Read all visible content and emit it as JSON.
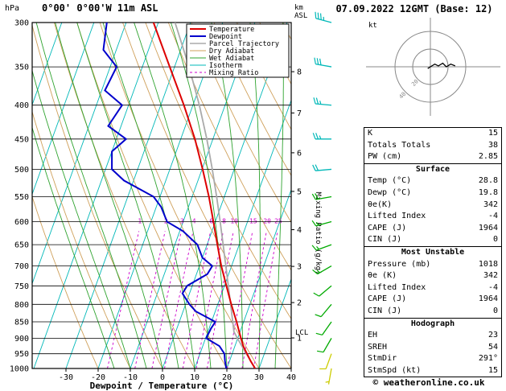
{
  "meta": {
    "date_title": "07.09.2022 12GMT (Base: 12)",
    "copyright": "© weatheronline.co.uk"
  },
  "colors": {
    "temperature": "#dd0000",
    "dewpoint": "#0000cc",
    "parcel": "#aaaaaa",
    "dry_adiabat": "#cfa05a",
    "wet_adiabat": "#2fa32f",
    "isotherm": "#00b8b8",
    "mixing_ratio": "#cc00cc",
    "grid": "#000000",
    "hodograph_grid": "#888888"
  },
  "chart_data": [
    {
      "type": "skewt-log-p",
      "title": "0°00' 0°00'W 11m ASL",
      "pressure_unit": "hPa",
      "xlabel": "Dewpoint / Temperature (°C)",
      "right_label": "Mixing Ratio (g/kg)",
      "km_axis_label": [
        "km",
        "ASL"
      ],
      "pressure_range_hpa": [
        300,
        1000
      ],
      "temp_range_c": [
        -40.5,
        40
      ],
      "pressure_ticks": [
        300,
        350,
        400,
        450,
        500,
        550,
        600,
        650,
        700,
        750,
        800,
        850,
        900,
        950,
        1000
      ],
      "temp_ticks": [
        -30,
        -20,
        -10,
        0,
        10,
        20,
        30,
        40
      ],
      "km_ticks": [
        {
          "label": "8",
          "p": 356
        },
        {
          "label": "7",
          "p": 411
        },
        {
          "label": "6",
          "p": 472
        },
        {
          "label": "5",
          "p": 540
        },
        {
          "label": "4",
          "p": 617
        },
        {
          "label": "3",
          "p": 701
        },
        {
          "label": "2",
          "p": 795
        },
        {
          "label": "1",
          "p": 899
        }
      ],
      "lcl": {
        "label": "LCL",
        "p": 880
      },
      "mixing_ratio_values": [
        1,
        2,
        3,
        4,
        6,
        8,
        10,
        15,
        20,
        25
      ],
      "isotherms_c": [
        -120,
        -110,
        -100,
        -90,
        -80,
        -70,
        -60,
        -50,
        -40,
        -30,
        -20,
        -10,
        0,
        10,
        20,
        30,
        40
      ],
      "dry_adiabats_c": [
        -20,
        -10,
        0,
        10,
        20,
        30,
        40,
        50,
        60,
        70,
        80,
        90,
        100,
        110,
        120,
        130,
        140,
        150
      ],
      "wet_adiabats_c": [
        -15,
        -10,
        -5,
        0,
        5,
        10,
        15,
        20,
        25,
        30,
        35
      ],
      "legend": [
        {
          "label": "Temperature",
          "color": "#dd0000",
          "width": 2
        },
        {
          "label": "Dewpoint",
          "color": "#0000cc",
          "width": 2
        },
        {
          "label": "Parcel Trajectory",
          "color": "#aaaaaa",
          "width": 1.6
        },
        {
          "label": "Dry Adiabat",
          "color": "#cfa05a",
          "width": 1
        },
        {
          "label": "Wet Adiabat",
          "color": "#2fa32f",
          "width": 1
        },
        {
          "label": "Isotherm",
          "color": "#00b8b8",
          "width": 1
        },
        {
          "label": "Mixing Ratio",
          "color": "#cc00cc",
          "width": 1,
          "dash": "3,3"
        }
      ],
      "temperature_profile": [
        [
          1000,
          28.8
        ],
        [
          975,
          26.6
        ],
        [
          950,
          24.6
        ],
        [
          925,
          22.6
        ],
        [
          900,
          21.0
        ],
        [
          850,
          17.8
        ],
        [
          800,
          14.2
        ],
        [
          750,
          10.6
        ],
        [
          700,
          6.8
        ],
        [
          650,
          3.2
        ],
        [
          600,
          -0.6
        ],
        [
          550,
          -4.8
        ],
        [
          500,
          -9.8
        ],
        [
          450,
          -15.6
        ],
        [
          400,
          -22.8
        ],
        [
          350,
          -31.5
        ],
        [
          300,
          -41.5
        ]
      ],
      "dewpoint_profile": [
        [
          1000,
          19.8
        ],
        [
          975,
          18.6
        ],
        [
          950,
          17.6
        ],
        [
          925,
          15.2
        ],
        [
          900,
          10.2
        ],
        [
          870,
          10.6
        ],
        [
          850,
          11.2
        ],
        [
          820,
          4.0
        ],
        [
          800,
          1.2
        ],
        [
          770,
          -2.2
        ],
        [
          750,
          -1.6
        ],
        [
          720,
          3.4
        ],
        [
          700,
          4.0
        ],
        [
          680,
          0.0
        ],
        [
          650,
          -3.0
        ],
        [
          620,
          -9.0
        ],
        [
          600,
          -15.0
        ],
        [
          570,
          -18.5
        ],
        [
          550,
          -22.0
        ],
        [
          520,
          -33.0
        ],
        [
          500,
          -38.0
        ],
        [
          470,
          -40.0
        ],
        [
          450,
          -37.0
        ],
        [
          430,
          -44.0
        ],
        [
          400,
          -42.0
        ],
        [
          380,
          -49.0
        ],
        [
          350,
          -48.0
        ],
        [
          330,
          -54.0
        ],
        [
          300,
          -56.0
        ]
      ],
      "parcel_profile": [
        [
          1000,
          28.8
        ],
        [
          950,
          24.4
        ],
        [
          900,
          19.9
        ],
        [
          880,
          18.1
        ],
        [
          850,
          16.6
        ],
        [
          800,
          14.0
        ],
        [
          750,
          11.2
        ],
        [
          700,
          8.2
        ],
        [
          650,
          5.0
        ],
        [
          600,
          1.5
        ],
        [
          550,
          -2.4
        ],
        [
          500,
          -6.8
        ],
        [
          450,
          -11.9
        ],
        [
          400,
          -18.0
        ],
        [
          350,
          -25.5
        ],
        [
          300,
          -34.8
        ]
      ],
      "wind_barbs": [
        {
          "p": 300,
          "spd": 35,
          "dir": 285,
          "color": "#00b8b8"
        },
        {
          "p": 350,
          "spd": 30,
          "dir": 280,
          "color": "#00b8b8"
        },
        {
          "p": 400,
          "spd": 25,
          "dir": 275,
          "color": "#00b8b8"
        },
        {
          "p": 450,
          "spd": 25,
          "dir": 270,
          "color": "#00b8b8"
        },
        {
          "p": 500,
          "spd": 20,
          "dir": 265,
          "color": "#00b8b8"
        },
        {
          "p": 550,
          "spd": 20,
          "dir": 260,
          "color": "#00aa00"
        },
        {
          "p": 600,
          "spd": 15,
          "dir": 255,
          "color": "#00aa00"
        },
        {
          "p": 650,
          "spd": 15,
          "dir": 250,
          "color": "#00aa00"
        },
        {
          "p": 700,
          "spd": 15,
          "dir": 240,
          "color": "#00aa00"
        },
        {
          "p": 750,
          "spd": 10,
          "dir": 230,
          "color": "#00aa00"
        },
        {
          "p": 800,
          "spd": 10,
          "dir": 220,
          "color": "#00aa00"
        },
        {
          "p": 850,
          "spd": 10,
          "dir": 215,
          "color": "#00aa00"
        },
        {
          "p": 900,
          "spd": 10,
          "dir": 210,
          "color": "#00aa00"
        },
        {
          "p": 950,
          "spd": 10,
          "dir": 200,
          "color": "#cccc00"
        },
        {
          "p": 1000,
          "spd": 5,
          "dir": 190,
          "color": "#cccc00"
        }
      ]
    },
    {
      "type": "hodograph",
      "unit": "kt",
      "rings": [
        {
          "label": "20",
          "kt": 20
        },
        {
          "label": "40",
          "kt": 40
        }
      ],
      "trace_uv_kt": [
        [
          -3,
          -2
        ],
        [
          0,
          0
        ],
        [
          5,
          3
        ],
        [
          9,
          1
        ],
        [
          14,
          4
        ],
        [
          18,
          0
        ],
        [
          23,
          3
        ],
        [
          28,
          1
        ]
      ]
    }
  ],
  "table": {
    "top": [
      {
        "label": "K",
        "value": "15"
      },
      {
        "label": "Totals Totals",
        "value": "38"
      },
      {
        "label": "PW (cm)",
        "value": "2.85"
      }
    ],
    "surface": {
      "header": "Surface",
      "rows": [
        {
          "label": "Temp (°C)",
          "value": "28.8"
        },
        {
          "label": "Dewp (°C)",
          "value": "19.8"
        },
        {
          "label": "θe(K)",
          "value": "342"
        },
        {
          "label": "Lifted Index",
          "value": "-4"
        },
        {
          "label": "CAPE (J)",
          "value": "1964"
        },
        {
          "label": "CIN (J)",
          "value": "0"
        }
      ]
    },
    "most_unstable": {
      "header": "Most Unstable",
      "rows": [
        {
          "label": "Pressure (mb)",
          "value": "1018"
        },
        {
          "label": "θe (K)",
          "value": "342"
        },
        {
          "label": "Lifted Index",
          "value": "-4"
        },
        {
          "label": "CAPE (J)",
          "value": "1964"
        },
        {
          "label": "CIN (J)",
          "value": "0"
        }
      ]
    },
    "hodograph": {
      "header": "Hodograph",
      "rows": [
        {
          "label": "EH",
          "value": "23"
        },
        {
          "label": "SREH",
          "value": "54"
        },
        {
          "label": "StmDir",
          "value": "291°"
        },
        {
          "label": "StmSpd (kt)",
          "value": "15"
        }
      ]
    }
  }
}
